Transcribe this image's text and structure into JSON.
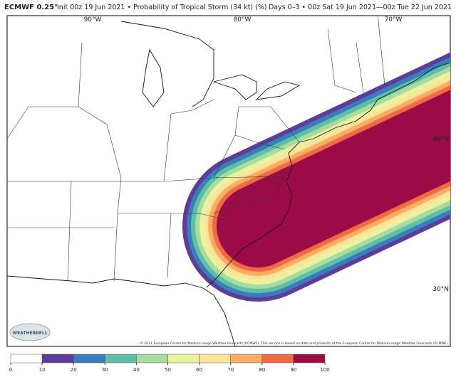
{
  "header": {
    "model": "ECMWF 0.25°",
    "title": "Init 00z 19 Jun 2021 • Probability of Tropical Storm (34 kt) (%)",
    "valid": "Days 0–3 • 00z Sat 19 Jun 2021—00z Tue 22 Jun 2021"
  },
  "map": {
    "lon_labels": [
      "90°W",
      "80°W",
      "70°W"
    ],
    "lat_labels": [
      "40°N",
      "30°N"
    ],
    "logo": "WEATHERBELL",
    "credit": "© 2021 European Centre for Medium-range Weather Forecasts (ECMWF). This service is based on data and products of the European Centre for Medium-range Weather Forecasts (ECMWF)."
  },
  "colorbar": {
    "ticks": [
      0,
      10,
      20,
      30,
      40,
      50,
      60,
      70,
      80,
      90,
      100
    ],
    "colors": [
      "#ffffff",
      "#5e3c99",
      "#3a7dbb",
      "#5fbfa6",
      "#a8dba0",
      "#e9f3a0",
      "#fde49a",
      "#fbae63",
      "#f06a45",
      "#9b0b45"
    ]
  }
}
